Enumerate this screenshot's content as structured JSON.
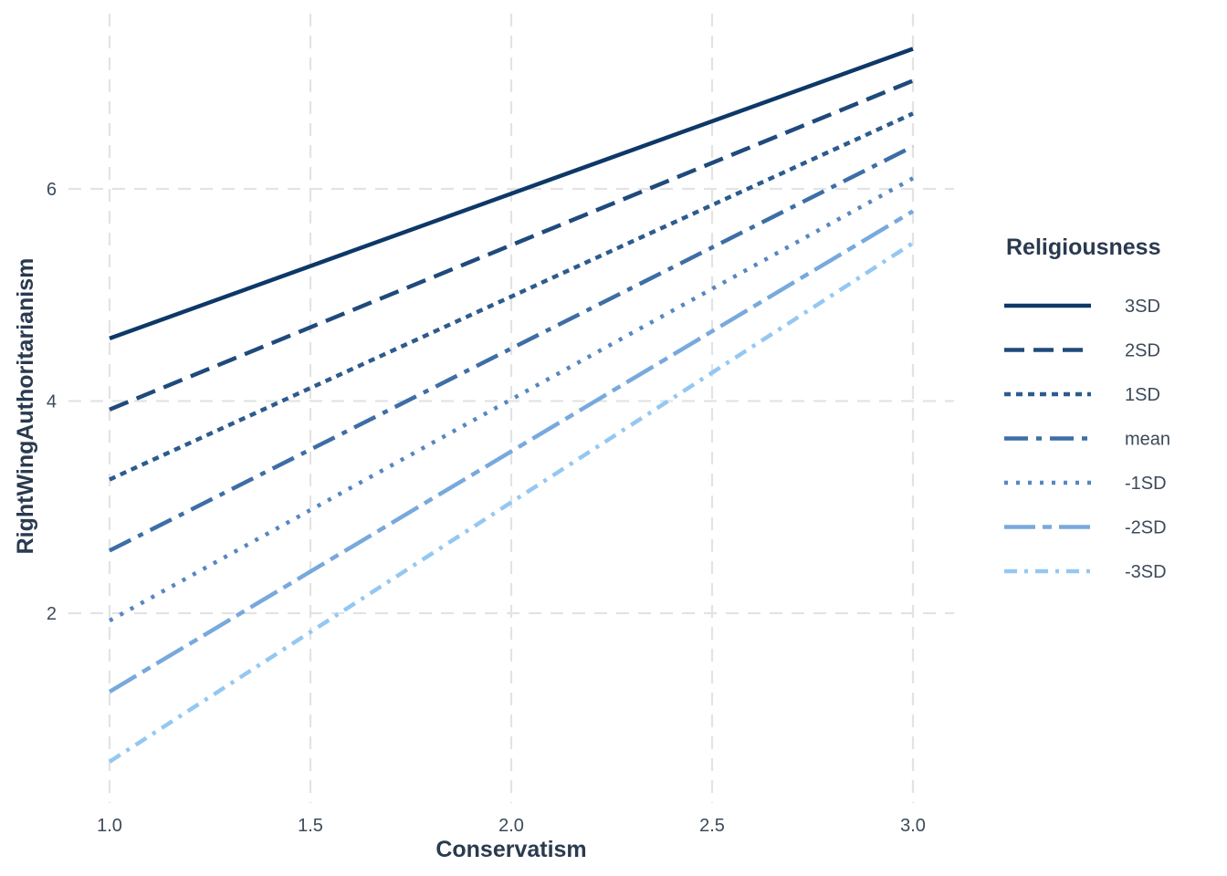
{
  "chart_data": {
    "type": "line",
    "xlabel": "Conservatism",
    "ylabel": "RightWingAuthoritarianism",
    "xlim": [
      0.95,
      3.1
    ],
    "ylim": [
      0.4,
      7.6
    ],
    "x_ticks": [
      "1.0",
      "1.5",
      "2.0",
      "2.5",
      "3.0"
    ],
    "y_ticks": [
      "2",
      "4",
      "6"
    ],
    "grid": true,
    "grid_style": "dashed",
    "legend_title": "Religiousness",
    "legend_position": "right",
    "x": [
      1.0,
      3.0
    ],
    "series": [
      {
        "name": "3SD",
        "values": [
          4.59,
          7.32
        ],
        "color": "#0d3868",
        "dash": "solid"
      },
      {
        "name": "2SD",
        "values": [
          3.92,
          7.02
        ],
        "color": "#1f4a7c",
        "dash": "longdash"
      },
      {
        "name": "1SD",
        "values": [
          3.26,
          6.71
        ],
        "color": "#2d5b8e",
        "dash": "dotted-dash"
      },
      {
        "name": "mean",
        "values": [
          2.59,
          6.4
        ],
        "color": "#3d6ea6",
        "dash": "dashdot"
      },
      {
        "name": "-1SD",
        "values": [
          1.93,
          6.1
        ],
        "color": "#5687c0",
        "dash": "dotted"
      },
      {
        "name": "-2SD",
        "values": [
          1.26,
          5.79
        ],
        "color": "#78a9dd",
        "dash": "twodash"
      },
      {
        "name": "-3SD",
        "values": [
          0.6,
          5.49
        ],
        "color": "#94c8f2",
        "dash": "dash-dot-small"
      }
    ]
  }
}
